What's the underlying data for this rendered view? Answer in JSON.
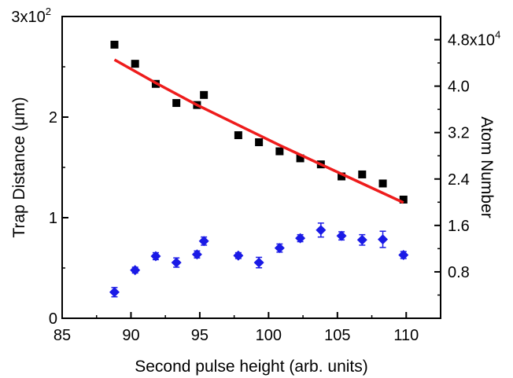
{
  "chart_data": {
    "type": "scatter",
    "xlabel": "Second pulse height (arb. units)",
    "ylabel_left": "Trap Distance (μm)",
    "ylabel_right": "Atom Number",
    "xlim": [
      85,
      112.5
    ],
    "ylim_left": [
      0,
      300
    ],
    "ylim_right": [
      0,
      52000
    ],
    "x_ticks": [
      85,
      90,
      95,
      100,
      105,
      110
    ],
    "x_tick_labels": [
      "85",
      "90",
      "95",
      "100",
      "105",
      "110"
    ],
    "y_left_ticks": [
      0,
      100,
      200,
      300
    ],
    "y_left_tick_labels": [
      "0",
      "1",
      "2",
      "3x10"
    ],
    "y_left_top_exponent": "2",
    "y_right_ticks": [
      8000,
      16000,
      24000,
      32000,
      40000,
      48000
    ],
    "y_right_tick_labels": [
      "0.8",
      "1.6",
      "2.4",
      "3.2",
      "4.0",
      "4.8x10"
    ],
    "y_right_top_exponent": "4",
    "grid": false,
    "series": [
      {
        "axis": "left",
        "marker": "square",
        "color": "#000000",
        "x": [
          88.8,
          90.3,
          91.8,
          93.3,
          94.8,
          95.3,
          97.8,
          99.3,
          100.8,
          102.3,
          103.8,
          105.3,
          106.8,
          108.3,
          109.8
        ],
        "y": [
          272,
          253,
          233,
          214,
          212,
          222,
          182,
          175,
          166,
          159,
          153,
          141,
          143,
          134,
          118
        ]
      },
      {
        "axis": "left",
        "type": "line",
        "color": "#ee1c1c",
        "x": [
          88.8,
          91.8,
          94.8,
          97.8,
          100.8,
          103.8,
          106.8,
          109.8
        ],
        "y": [
          257,
          234,
          212,
          192,
          172,
          153,
          134,
          115
        ]
      },
      {
        "axis": "right",
        "marker": "diamond",
        "color": "#1a1ae6",
        "x": [
          88.8,
          90.3,
          91.8,
          93.3,
          94.8,
          95.3,
          97.8,
          99.3,
          100.8,
          102.3,
          103.8,
          105.3,
          106.8,
          108.3,
          109.8
        ],
        "y": [
          4500,
          8300,
          10700,
          9600,
          11000,
          13300,
          10800,
          9600,
          12100,
          13800,
          15200,
          14200,
          13500,
          13600,
          10900
        ],
        "err": [
          800,
          500,
          600,
          800,
          600,
          700,
          500,
          900,
          700,
          600,
          1200,
          700,
          900,
          1400,
          600
        ]
      }
    ]
  }
}
